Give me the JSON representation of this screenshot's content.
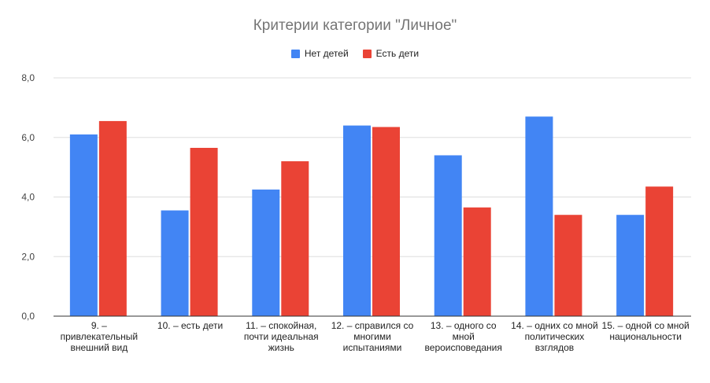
{
  "chart_data": {
    "type": "bar",
    "title": "Критерии категории \"Личное\"",
    "categories": [
      "9. – привлекательный внешний вид",
      "10. – есть дети",
      "11. – спокойная, почти идеальная жизнь",
      "12. – справился со многими испытаниями",
      "13. – одного со мной вероисповедания",
      "14. – одних со мной политических взглядов",
      "15. – одной со мной национальности"
    ],
    "series": [
      {
        "name": "Нет детей",
        "color": "#4285f4",
        "values": [
          6.1,
          3.55,
          4.25,
          6.4,
          5.4,
          6.7,
          3.4
        ]
      },
      {
        "name": "Есть дети",
        "color": "#ea4335",
        "values": [
          6.55,
          5.65,
          5.2,
          6.35,
          3.65,
          3.4,
          4.35
        ]
      }
    ],
    "ylim": [
      0,
      8
    ],
    "yticks": [
      "0,0",
      "2,0",
      "4,0",
      "6,0",
      "8,0"
    ],
    "grid": true,
    "legend": "top"
  }
}
